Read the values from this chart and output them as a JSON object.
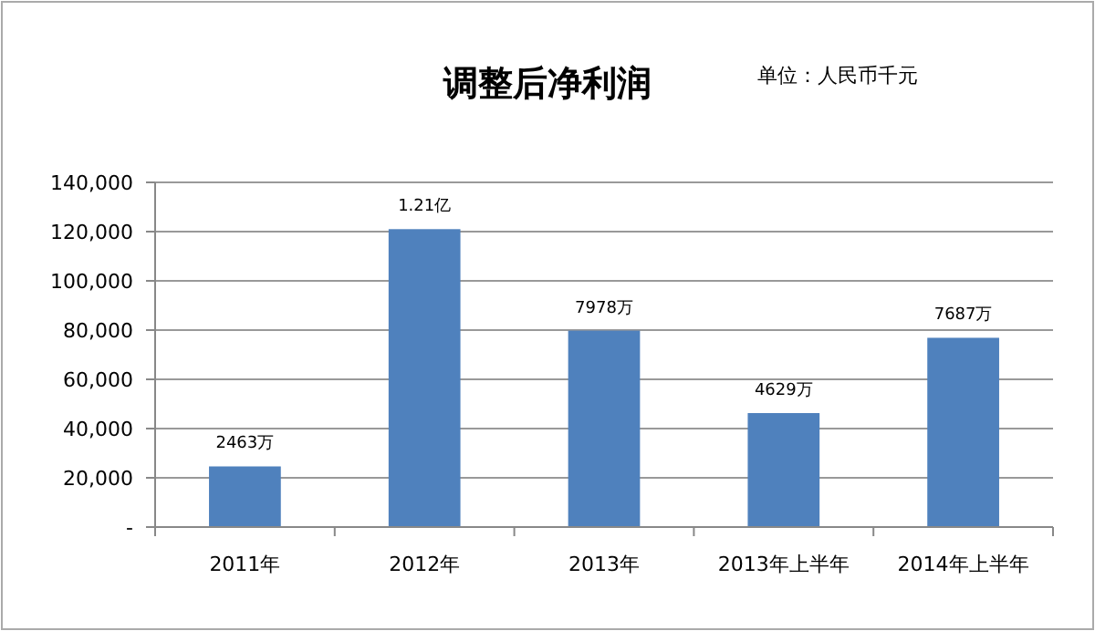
{
  "chart_data": {
    "type": "bar",
    "title": "调整后净利润",
    "subtitle": "单位：人民币千元",
    "categories": [
      "2011年",
      "2012年",
      "2013年",
      "2013年上半年",
      "2014年上半年"
    ],
    "values": [
      24630,
      121000,
      79780,
      46290,
      76870
    ],
    "annotations": [
      {
        "text": "2463万",
        "x": "2011年",
        "y": 24630
      },
      {
        "text": "1.21亿",
        "x": "2012年",
        "y": 121000
      },
      {
        "text": "7978万",
        "x": "2013年",
        "y": 79780
      },
      {
        "text": "4629万",
        "x": "2013年上半年",
        "y": 46290
      },
      {
        "text": "7687万",
        "x": "2014年上半年",
        "y": 76870
      }
    ],
    "color": "#4f81bd",
    "ylim": [
      0,
      140000
    ],
    "yticks": [
      {
        "value": 0,
        "label": "-"
      },
      {
        "value": 20000,
        "label": "20,000"
      },
      {
        "value": 40000,
        "label": "40,000"
      },
      {
        "value": 60000,
        "label": "60,000"
      },
      {
        "value": 80000,
        "label": "80,000"
      },
      {
        "value": 100000,
        "label": "100,000"
      },
      {
        "value": 120000,
        "label": "120,000"
      },
      {
        "value": 140000,
        "label": "140,000"
      }
    ],
    "grid": "y"
  }
}
